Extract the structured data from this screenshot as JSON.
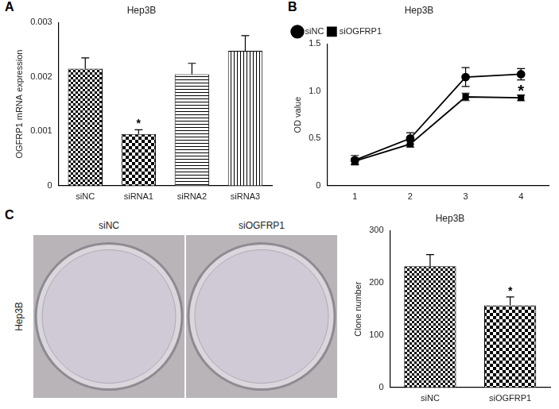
{
  "chart_data": [
    {
      "panel": "A",
      "type": "bar",
      "title": "Hep3B",
      "y_label": "OGFRP1 mRNA expression",
      "categories": [
        "siNC",
        "siRNA1",
        "siRNA2",
        "siRNA3"
      ],
      "values": [
        0.00215,
        0.00095,
        0.00205,
        0.00248
      ],
      "errors": [
        0.0002,
        8e-05,
        0.0002,
        0.00028
      ],
      "colors": [
        "#000000",
        "#000000",
        "#000000",
        "#000000"
      ],
      "ylim": [
        0,
        0.003
      ],
      "yticks": [
        0,
        0.001,
        0.002,
        0.003
      ],
      "grid": false,
      "annotations": [
        {
          "text": "*",
          "category": "siRNA1"
        }
      ]
    },
    {
      "panel": "B",
      "type": "line",
      "title": "Hep3B",
      "y_label": "OD value",
      "categories": [
        1,
        2,
        3,
        4
      ],
      "series": [
        {
          "name": "siNC",
          "color": "#000000",
          "marker": "circle",
          "values": [
            0.27,
            0.5,
            1.15,
            1.18
          ],
          "errors": [
            0.05,
            0.06,
            0.1,
            0.06
          ]
        },
        {
          "name": "siOGFRP1",
          "color": "#000000",
          "marker": "square",
          "values": [
            0.26,
            0.44,
            0.94,
            0.93
          ],
          "errors": [
            0.03,
            0.03,
            0.04,
            0.03
          ]
        }
      ],
      "ylim": [
        0,
        1.5
      ],
      "yticks": [
        0,
        0.5,
        {
          "value": 1.0,
          "label": "1.0"
        },
        1.5
      ],
      "grid": false,
      "legend": "upper left",
      "annotations": [
        {
          "text": "*",
          "category": 4,
          "series": "siOGFRP1"
        }
      ]
    },
    {
      "type": "bar",
      "title": "Hep3B",
      "y_label": "Clone number",
      "categories": [
        "siNC",
        "siOGFRP1"
      ],
      "values": [
        232,
        157
      ],
      "errors": [
        22,
        16
      ],
      "colors": [
        "#000000",
        "#000000"
      ],
      "ylim": [
        0,
        300
      ],
      "yticks": [
        0,
        100,
        200,
        300
      ],
      "grid": false,
      "annotations": [
        {
          "text": "*",
          "category": "siOGFRP1"
        }
      ]
    }
  ],
  "photo": {
    "panel": "C",
    "row_label": "Hep3B",
    "column_labels": [
      "siNC",
      "siOGFRP1"
    ]
  }
}
